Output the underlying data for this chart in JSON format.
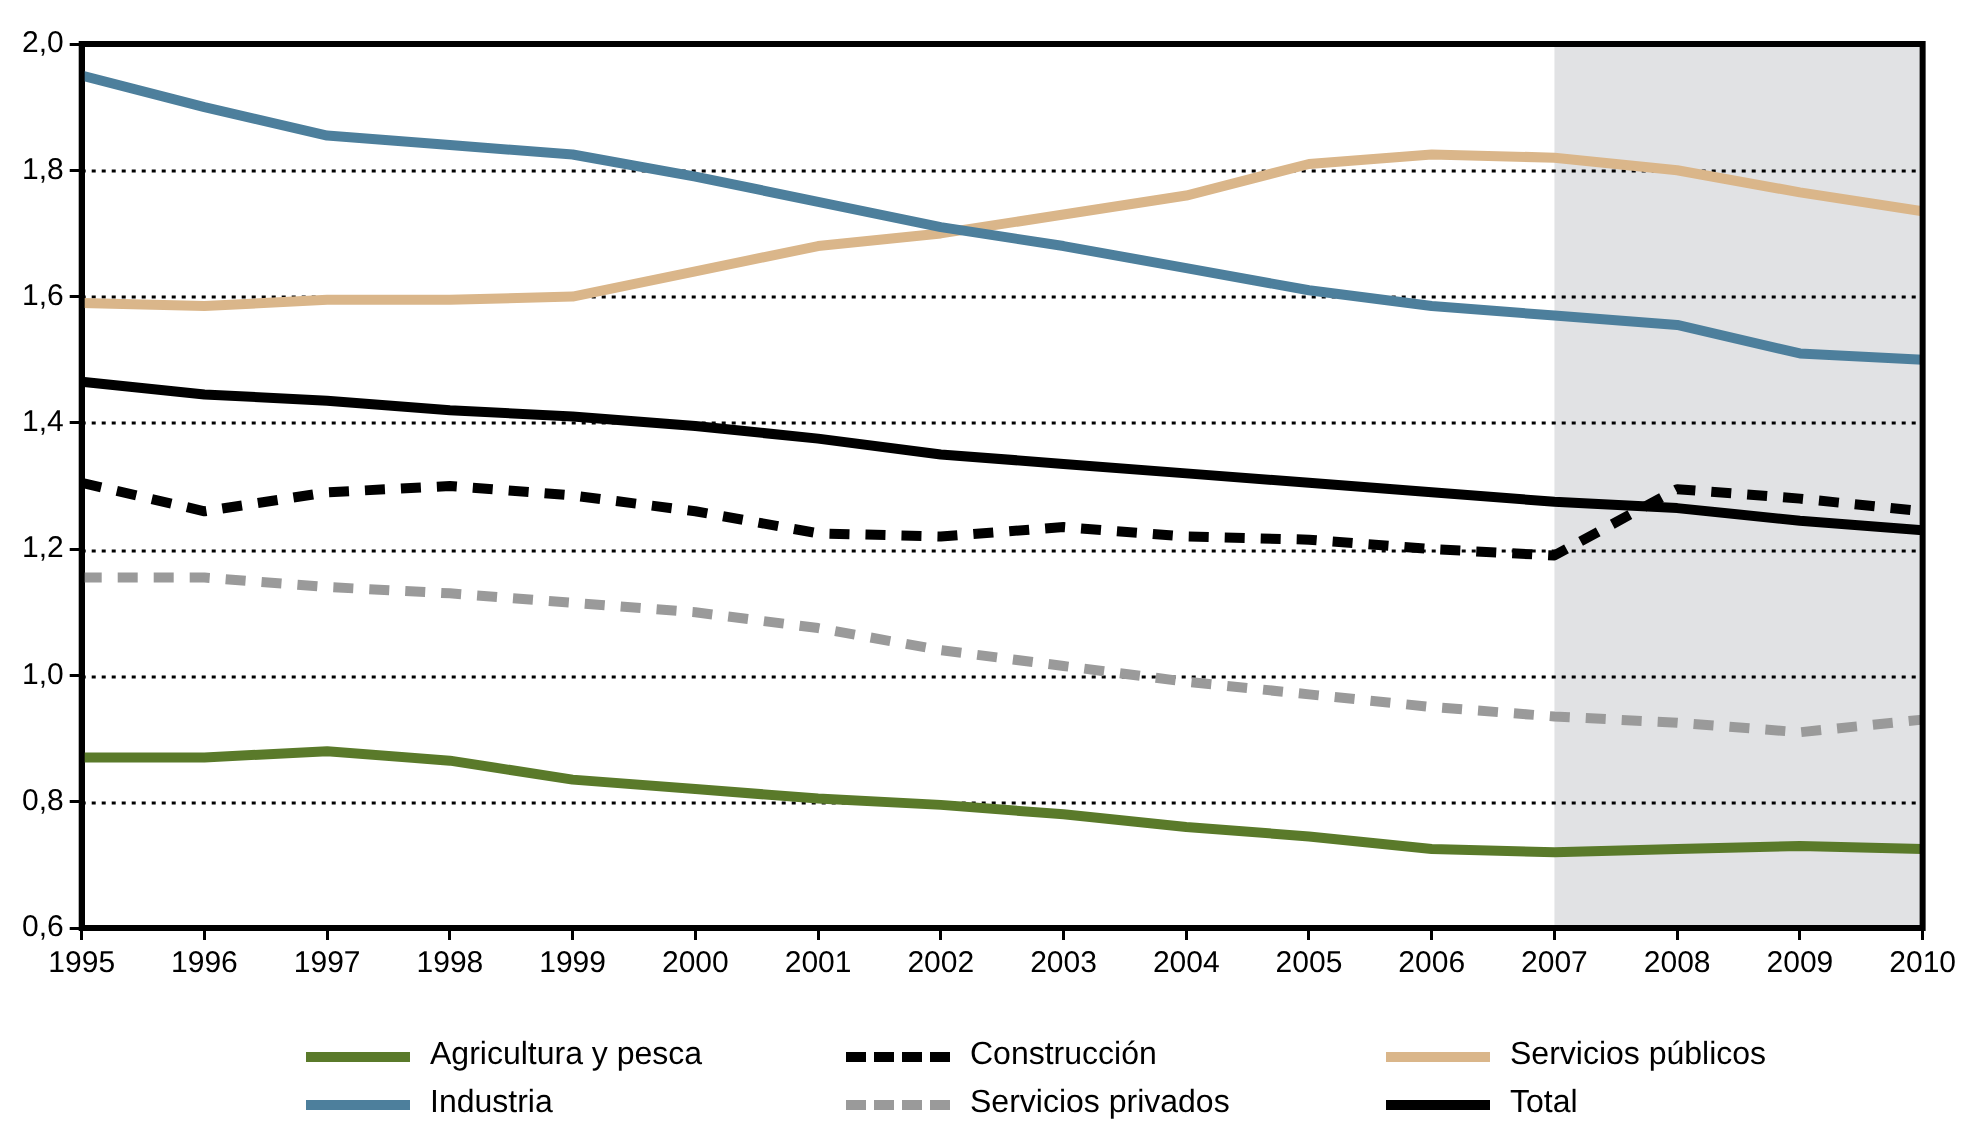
{
  "chart_data": {
    "type": "line",
    "x": [
      1995,
      1996,
      1997,
      1998,
      1999,
      2000,
      2001,
      2002,
      2003,
      2004,
      2005,
      2006,
      2007,
      2008,
      2009,
      2010
    ],
    "xlim": [
      1995,
      2010
    ],
    "xticks": [
      1995,
      1996,
      1997,
      1998,
      1999,
      2000,
      2001,
      2002,
      2003,
      2004,
      2005,
      2006,
      2007,
      2008,
      2009,
      2010
    ],
    "ylim": [
      0.6,
      2.0
    ],
    "yticks": [
      {
        "value": 0.6,
        "label": "0,6"
      },
      {
        "value": 0.8,
        "label": "0,8"
      },
      {
        "value": 1.0,
        "label": "1,0"
      },
      {
        "value": 1.2,
        "label": "1,2"
      },
      {
        "value": 1.4,
        "label": "1,4"
      },
      {
        "value": 1.6,
        "label": "1,6"
      },
      {
        "value": 1.8,
        "label": "1,8"
      },
      {
        "value": 2.0,
        "label": "2,0"
      }
    ],
    "grid": "y",
    "legend": "bottom",
    "marker": "none",
    "bands": [
      {
        "axis": "x",
        "from": 2007,
        "to": 2010,
        "color": "#e1e2e4"
      }
    ],
    "series": [
      {
        "name": "Agricultura y pesca",
        "color": "#5a7a2a",
        "line_style": "solid",
        "values": [
          0.87,
          0.87,
          0.88,
          0.865,
          0.835,
          0.82,
          0.805,
          0.795,
          0.78,
          0.76,
          0.745,
          0.725,
          0.72,
          0.725,
          0.73,
          0.725
        ]
      },
      {
        "name": "Industria",
        "color": "#4d7f9c",
        "line_style": "solid",
        "values": [
          1.95,
          1.9,
          1.855,
          1.84,
          1.825,
          1.79,
          1.75,
          1.71,
          1.68,
          1.645,
          1.61,
          1.585,
          1.57,
          1.555,
          1.51,
          1.5
        ]
      },
      {
        "name": "Construcción",
        "color": "#000000",
        "line_style": "dashed",
        "values": [
          1.305,
          1.26,
          1.29,
          1.3,
          1.285,
          1.26,
          1.225,
          1.22,
          1.235,
          1.22,
          1.215,
          1.2,
          1.19,
          1.295,
          1.28,
          1.26
        ]
      },
      {
        "name": "Servicios privados",
        "color": "#9a9a9a",
        "line_style": "dashed",
        "values": [
          1.155,
          1.155,
          1.14,
          1.13,
          1.115,
          1.1,
          1.075,
          1.04,
          1.015,
          0.99,
          0.97,
          0.95,
          0.935,
          0.925,
          0.91,
          0.93
        ]
      },
      {
        "name": "Servicios públicos",
        "color": "#dab68a",
        "line_style": "solid",
        "values": [
          1.59,
          1.585,
          1.595,
          1.595,
          1.6,
          1.64,
          1.68,
          1.7,
          1.73,
          1.76,
          1.81,
          1.825,
          1.82,
          1.8,
          1.765,
          1.735
        ]
      },
      {
        "name": "Total",
        "color": "#000000",
        "line_style": "solid",
        "values": [
          1.465,
          1.445,
          1.435,
          1.42,
          1.41,
          1.395,
          1.375,
          1.35,
          1.335,
          1.32,
          1.305,
          1.29,
          1.275,
          1.265,
          1.245,
          1.23
        ]
      }
    ]
  }
}
